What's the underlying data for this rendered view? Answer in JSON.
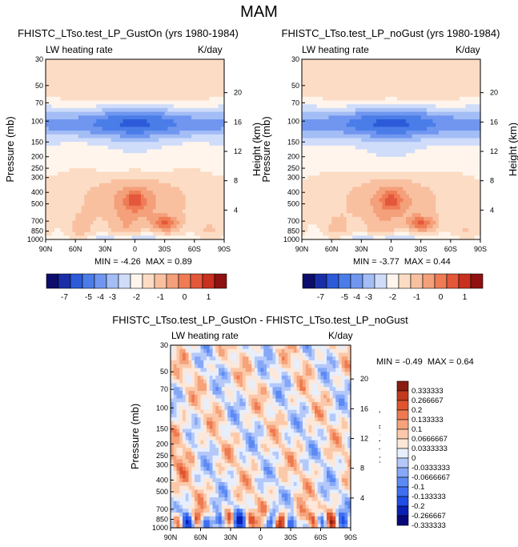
{
  "main_title": "MAM",
  "color_scales": {
    "top": [
      "#0d0d6b",
      "#1a2ea8",
      "#2c5ad9",
      "#4a7de8",
      "#7096f0",
      "#a3bdf5",
      "#cfdcfa",
      "#fff5ec",
      "#fcdcc4",
      "#f9c0a0",
      "#f4a07a",
      "#ef7c55",
      "#e4573a",
      "#c9301f",
      "#8f1010"
    ],
    "diff": [
      "#07077a",
      "#0a1fb3",
      "#1f4de6",
      "#3f6ef0",
      "#5c8af4",
      "#86a8f7",
      "#b4c9fa",
      "#e7eefc",
      "#fde7d8",
      "#fbc9a9",
      "#f6a27a",
      "#ef7a50",
      "#e05530",
      "#c23a1e",
      "#8a1d10"
    ]
  },
  "panels": [
    {
      "title": "FHISTC_LTso.test_LP_GustOn (yrs 1980-1984)",
      "left_label": "LW heating rate",
      "right_label": "K/day",
      "min_text": "MIN = ",
      "min_value": "-4.26",
      "max_text": "MAX = ",
      "max_value": "0.89"
    },
    {
      "title": "FHISTC_LTso.test_LP_noGust (yrs 1980-1984)",
      "left_label": "LW heating rate",
      "right_label": "K/day",
      "min_text": "MIN = ",
      "min_value": "-3.77",
      "max_text": "MAX = ",
      "max_value": "0.44"
    },
    {
      "title": "FHISTC_LTso.test_LP_GustOn - FHISTC_LTso.test_LP_noGust",
      "left_label": "LW heating rate",
      "right_label": "K/day",
      "min_text": "MIN = ",
      "min_value": "-0.49",
      "max_text": "MAX = ",
      "max_value": "0.64"
    }
  ],
  "chart_data": [
    {
      "type": "heatmap",
      "title": "FHISTC_LTso.test_LP_GustOn (yrs 1980-1984)",
      "xlabel": "",
      "ylabel": "Pressure (mb)",
      "y2label": "Height (km)",
      "x_tick_labels": [
        "90N",
        "60N",
        "30N",
        "0",
        "30S",
        "60S",
        "90S"
      ],
      "y_ticks": [
        30,
        50,
        70,
        100,
        150,
        200,
        250,
        300,
        400,
        500,
        700,
        850,
        1000
      ],
      "y2_ticks": [
        "20",
        "16",
        "12",
        "8",
        "4"
      ],
      "y_range": [
        30,
        1000
      ],
      "x_range": [
        90,
        -90
      ],
      "data_min": -4.26,
      "data_max": 0.89
    },
    {
      "type": "heatmap",
      "title": "FHISTC_LTso.test_LP_noGust (yrs 1980-1984)",
      "xlabel": "",
      "ylabel": "Pressure (mb)",
      "y2label": "Height (km)",
      "x_tick_labels": [
        "90N",
        "60N",
        "30N",
        "0",
        "30S",
        "60S",
        "90S"
      ],
      "y_ticks": [
        30,
        50,
        70,
        100,
        150,
        200,
        250,
        300,
        400,
        500,
        700,
        850,
        1000
      ],
      "y2_ticks": [
        "20",
        "16",
        "12",
        "8",
        "4"
      ],
      "y_range": [
        30,
        1000
      ],
      "x_range": [
        90,
        -90
      ],
      "data_min": -3.77,
      "data_max": 0.44
    },
    {
      "type": "heatmap",
      "title": "FHISTC_LTso.test_LP_GustOn - FHISTC_LTso.test_LP_noGust",
      "xlabel": "",
      "ylabel": "Pressure (mb)",
      "y2label": "Height (km)",
      "x_tick_labels": [
        "90N",
        "60N",
        "30N",
        "0",
        "30S",
        "60S",
        "90S"
      ],
      "y_ticks": [
        30,
        50,
        70,
        100,
        150,
        200,
        250,
        300,
        400,
        500,
        700,
        850,
        1000
      ],
      "y2_ticks": [
        "20",
        "16",
        "12",
        "8",
        "4"
      ],
      "y_range": [
        30,
        1000
      ],
      "x_range": [
        90,
        -90
      ],
      "data_min": -0.49,
      "data_max": 0.64
    }
  ],
  "colorbars": {
    "top_labels": [
      "-7",
      "-5",
      "-4",
      "-3",
      "-2",
      "-1",
      "0",
      "1"
    ],
    "diff_labels": [
      "0.333333",
      "0.266667",
      "0.2",
      "0.133333",
      "0.1",
      "0.0666667",
      "0.0333333",
      "0",
      "-0.0333333",
      "-0.0666667",
      "-0.1",
      "-0.133333",
      "-0.2",
      "-0.266667",
      "-0.333333"
    ]
  }
}
